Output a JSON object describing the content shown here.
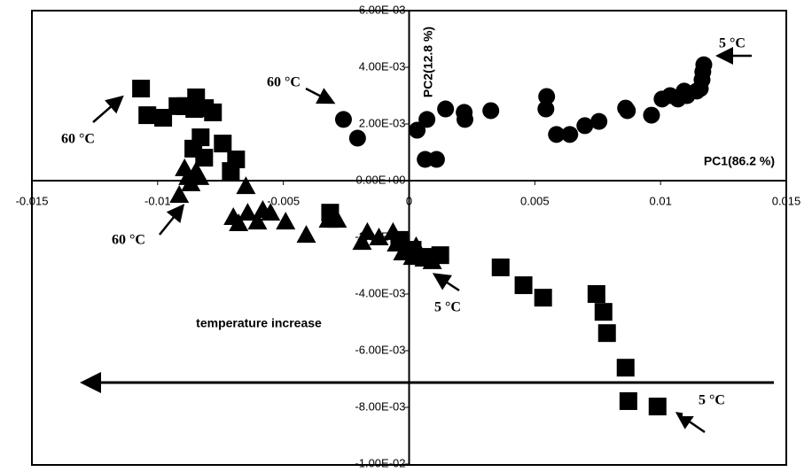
{
  "chart_data": {
    "type": "scatter",
    "x_label": "PC1(86.2 %)",
    "y_label": "PC2(12.8 %)",
    "xlim": [
      -0.015,
      0.015
    ],
    "xticks": [
      -0.015,
      -0.01,
      -0.005,
      0,
      0.005,
      0.01,
      0.015
    ],
    "ylim": [
      -0.01,
      0.006
    ],
    "yticks": [
      {
        "value": -0.01,
        "label": "-1.00E-02"
      },
      {
        "value": -0.008,
        "label": "-8.00E-03"
      },
      {
        "value": -0.006,
        "label": "-6.00E-03"
      },
      {
        "value": -0.004,
        "label": "-4.00E-03"
      },
      {
        "value": -0.002,
        "label": "-2.00E-03"
      },
      {
        "value": 0,
        "label": "0.00E+00"
      },
      {
        "value": 0.002,
        "label": "2.00E-03"
      },
      {
        "value": 0.004,
        "label": "4.00E-03"
      },
      {
        "value": 0.006,
        "label": "6.00E-03"
      }
    ],
    "annotations": [
      "60 °C",
      "60 °C",
      "60 °C",
      "5 °C",
      "5 °C",
      "5 °C",
      "temperature increase"
    ],
    "series": [
      {
        "marker": "circle",
        "color": "#000000",
        "x": [
          -0.00261,
          -0.00205,
          0.00032,
          0.00071,
          0.00064,
          0.00109,
          0.00145,
          0.00219,
          0.00222,
          0.00325,
          0.00547,
          0.00544,
          0.00586,
          0.00639,
          0.00699,
          0.00755,
          0.00861,
          0.00868,
          0.00964,
          0.01006,
          0.01038,
          0.01069,
          0.01094,
          0.01105,
          0.01144,
          0.01158,
          0.01165,
          0.01168,
          0.01172
        ],
        "values": [
          0.00216,
          0.0015,
          0.00178,
          0.00216,
          0.00075,
          0.00075,
          0.00253,
          0.00241,
          0.00216,
          0.00247,
          0.00297,
          0.00253,
          0.00163,
          0.00163,
          0.00194,
          0.00209,
          0.00256,
          0.00247,
          0.00231,
          0.00288,
          0.003,
          0.00288,
          0.00316,
          0.003,
          0.00316,
          0.00325,
          0.00356,
          0.00384,
          0.00409
        ]
      },
      {
        "marker": "square",
        "color": "#000000",
        "x": [
          -0.01066,
          -0.01041,
          -0.00978,
          -0.00921,
          -0.00889,
          -0.00847,
          -0.00854,
          -0.00812,
          -0.0078,
          -0.00858,
          -0.00829,
          -0.00815,
          -0.00741,
          -0.00688,
          -0.00709,
          -0.00314,
          -0.00039,
          0.00014,
          0.00074,
          0.00124,
          0.00364,
          0.00455,
          0.00533,
          0.00745,
          0.00773,
          0.00787,
          0.00861,
          0.00872,
          0.00988
        ],
        "values": [
          0.00325,
          0.00231,
          0.00222,
          0.00263,
          0.00263,
          0.00294,
          0.00253,
          0.00256,
          0.00241,
          0.00113,
          0.00153,
          0.00081,
          0.00131,
          0.00075,
          0.00034,
          -0.00113,
          -0.00209,
          -0.00244,
          -0.00269,
          -0.00263,
          -0.00306,
          -0.00369,
          -0.00413,
          -0.004,
          -0.00463,
          -0.00538,
          -0.0066,
          -0.00778,
          -0.00797
        ]
      },
      {
        "marker": "triangle",
        "color": "#000000",
        "x": [
          -0.00893,
          -0.00914,
          -0.00879,
          -0.00868,
          -0.00847,
          -0.00833,
          -0.00649,
          -0.00699,
          -0.00678,
          -0.00642,
          -0.00603,
          -0.00582,
          -0.00551,
          -0.00491,
          -0.00409,
          -0.00321,
          -0.00286,
          -0.00187,
          -0.00166,
          -0.0012,
          -0.00064,
          -0.0005,
          -0.00025,
          0.00028,
          0.00046,
          0.00014,
          0.0006,
          0.00092
        ],
        "values": [
          0.00044,
          -0.0005,
          0.00013,
          -9e-05,
          0.00034,
          0.00013,
          -0.00019,
          -0.00128,
          -0.0015,
          -0.00113,
          -0.00144,
          -0.00103,
          -0.00113,
          -0.00144,
          -0.00191,
          -0.00138,
          -0.00138,
          -0.00216,
          -0.00181,
          -0.002,
          -0.00181,
          -0.00222,
          -0.00253,
          -0.00231,
          -0.00263,
          -0.00269,
          -0.00275,
          -0.00284
        ]
      }
    ]
  }
}
